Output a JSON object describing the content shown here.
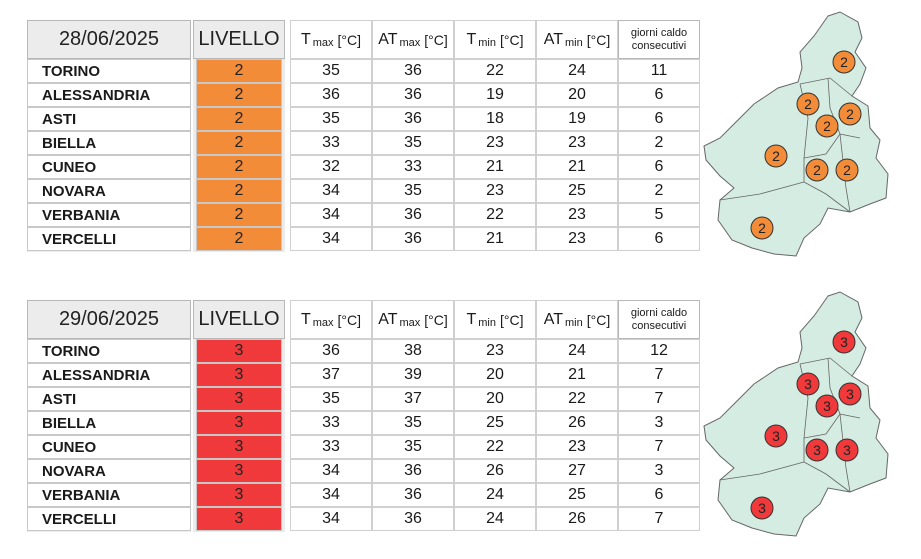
{
  "headers": {
    "livello": "LIVELLO",
    "tmax_main": "T",
    "tmax_sub": "max",
    "tmax_unit": "[°C]",
    "atmax_main": "AT",
    "atmax_sub": "max",
    "atmax_unit": "[°C]",
    "tmin_main": "T",
    "tmin_sub": "min",
    "tmin_unit": "[°C]",
    "atmin_main": "AT",
    "atmin_sub": "min",
    "atmin_unit": "[°C]",
    "days_line1": "giorni caldo",
    "days_line2": "consecutivi"
  },
  "colors": {
    "level2": "#f28c38",
    "level3": "#f0393a",
    "map_fill": "#d4ece1",
    "map_stroke": "#666666"
  },
  "blocks": [
    {
      "date": "28/06/2025",
      "level_color": "#f28c38",
      "rows": [
        {
          "name": "TORINO",
          "level": "2",
          "tmax": "35",
          "atmax": "36",
          "tmin": "22",
          "atmin": "24",
          "days": "11"
        },
        {
          "name": "ALESSANDRIA",
          "level": "2",
          "tmax": "36",
          "atmax": "36",
          "tmin": "19",
          "atmin": "20",
          "days": "6"
        },
        {
          "name": "ASTI",
          "level": "2",
          "tmax": "35",
          "atmax": "36",
          "tmin": "18",
          "atmin": "19",
          "days": "6"
        },
        {
          "name": "BIELLA",
          "level": "2",
          "tmax": "33",
          "atmax": "35",
          "tmin": "23",
          "atmin": "23",
          "days": "2"
        },
        {
          "name": "CUNEO",
          "level": "2",
          "tmax": "32",
          "atmax": "33",
          "tmin": "21",
          "atmin": "21",
          "days": "6"
        },
        {
          "name": "NOVARA",
          "level": "2",
          "tmax": "34",
          "atmax": "35",
          "tmin": "23",
          "atmin": "25",
          "days": "2"
        },
        {
          "name": "VERBANIA",
          "level": "2",
          "tmax": "34",
          "atmax": "36",
          "tmin": "22",
          "atmin": "23",
          "days": "5"
        },
        {
          "name": "VERCELLI",
          "level": "2",
          "tmax": "34",
          "atmax": "36",
          "tmin": "21",
          "atmin": "23",
          "days": "6"
        }
      ],
      "map_levels": [
        "2",
        "2",
        "2",
        "2",
        "2",
        "2",
        "2",
        "2"
      ]
    },
    {
      "date": "29/06/2025",
      "level_color": "#f0393a",
      "rows": [
        {
          "name": "TORINO",
          "level": "3",
          "tmax": "36",
          "atmax": "38",
          "tmin": "23",
          "atmin": "24",
          "days": "12"
        },
        {
          "name": "ALESSANDRIA",
          "level": "3",
          "tmax": "37",
          "atmax": "39",
          "tmin": "20",
          "atmin": "21",
          "days": "7"
        },
        {
          "name": "ASTI",
          "level": "3",
          "tmax": "35",
          "atmax": "37",
          "tmin": "20",
          "atmin": "22",
          "days": "7"
        },
        {
          "name": "BIELLA",
          "level": "3",
          "tmax": "33",
          "atmax": "35",
          "tmin": "25",
          "atmin": "26",
          "days": "3"
        },
        {
          "name": "CUNEO",
          "level": "3",
          "tmax": "33",
          "atmax": "35",
          "tmin": "22",
          "atmin": "23",
          "days": "7"
        },
        {
          "name": "NOVARA",
          "level": "3",
          "tmax": "34",
          "atmax": "36",
          "tmin": "26",
          "atmin": "27",
          "days": "3"
        },
        {
          "name": "VERBANIA",
          "level": "3",
          "tmax": "34",
          "atmax": "36",
          "tmin": "24",
          "atmin": "25",
          "days": "6"
        },
        {
          "name": "VERCELLI",
          "level": "3",
          "tmax": "34",
          "atmax": "36",
          "tmin": "24",
          "atmin": "26",
          "days": "7"
        }
      ],
      "map_levels": [
        "3",
        "3",
        "3",
        "3",
        "3",
        "3",
        "3",
        "3"
      ]
    }
  ]
}
